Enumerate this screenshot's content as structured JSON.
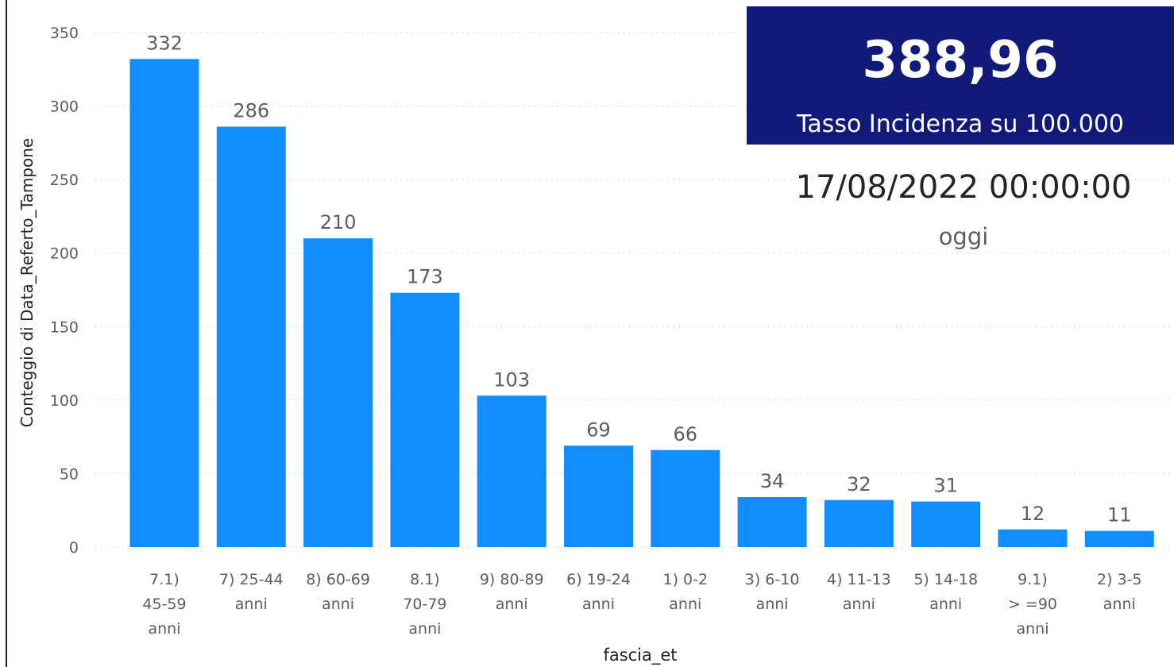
{
  "chart_data": {
    "type": "bar",
    "categories": [
      [
        "7.1)",
        "45-59",
        "anni"
      ],
      [
        "7) 25-44",
        "anni"
      ],
      [
        "8) 60-69",
        "anni"
      ],
      [
        "8.1)",
        "70-79",
        "anni"
      ],
      [
        "9) 80-89",
        "anni"
      ],
      [
        "6) 19-24",
        "anni"
      ],
      [
        "1) 0-2",
        "anni"
      ],
      [
        "3) 6-10",
        "anni"
      ],
      [
        "4) 11-13",
        "anni"
      ],
      [
        "5) 14-18",
        "anni"
      ],
      [
        "9.1)",
        "> =90",
        "anni"
      ],
      [
        "2) 3-5",
        "anni"
      ]
    ],
    "values": [
      332,
      286,
      210,
      173,
      103,
      69,
      66,
      34,
      32,
      31,
      12,
      11
    ],
    "xlabel": "fascia_et",
    "ylabel": "Conteggio di Data_Referto_Tampone",
    "ylim": [
      0,
      350
    ],
    "yticks": [
      0,
      50,
      100,
      150,
      200,
      250,
      300,
      350
    ],
    "grid": "horizontal dotted",
    "bar_color": "#118dff",
    "data_labels": true
  },
  "kpi": {
    "value": "388,96",
    "label": "Tasso Incidenza su 100.000",
    "background": "#111a78"
  },
  "date_card": {
    "value": "17/08/2022 00:00:00",
    "label": "oggi"
  }
}
